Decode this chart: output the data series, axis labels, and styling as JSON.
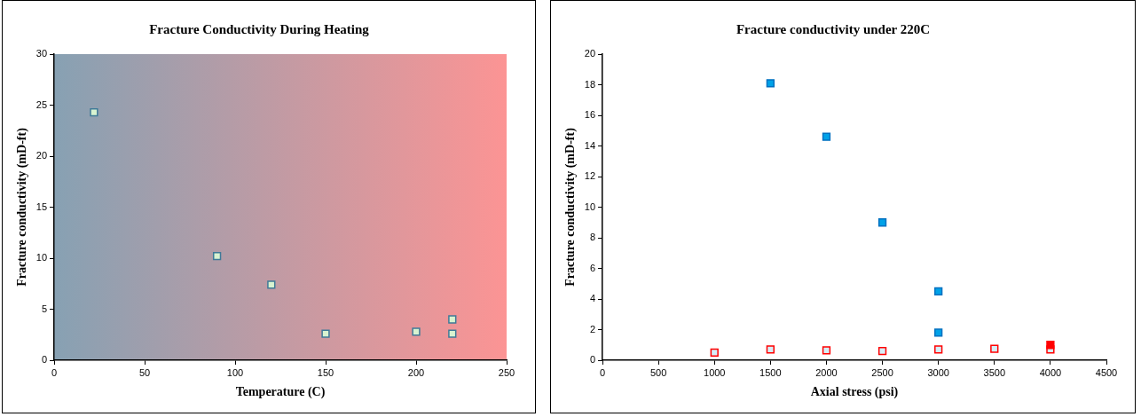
{
  "chart_data": [
    {
      "type": "scatter",
      "title": "Fracture Conductivity During Heating",
      "xlabel": "Temperature (C)",
      "ylabel": "Fracture conductivity (mD-ft)",
      "xlim": [
        0,
        250
      ],
      "xticks": [
        0,
        50,
        100,
        150,
        200,
        250
      ],
      "ylim": [
        0,
        30
      ],
      "yticks": [
        0,
        5,
        10,
        15,
        20,
        25,
        30
      ],
      "grid": false,
      "legend": false,
      "marker": "square",
      "series": [
        {
          "color": "#d8f3d0",
          "x": [
            22,
            90,
            120,
            150,
            200,
            220,
            220
          ],
          "values": [
            24.3,
            10.2,
            7.4,
            2.6,
            2.8,
            4.0,
            2.6
          ]
        }
      ]
    },
    {
      "type": "scatter",
      "title": "Fracture conductivity under 220C",
      "xlabel": "Axial stress (psi)",
      "ylabel": "Fracture conductivity (mD-ft)",
      "xlim": [
        0,
        4500
      ],
      "xticks": [
        0,
        500,
        1000,
        1500,
        2000,
        2500,
        3000,
        3500,
        4000,
        4500
      ],
      "ylim": [
        0,
        20
      ],
      "yticks": [
        0,
        2,
        4,
        6,
        8,
        10,
        12,
        14,
        16,
        18,
        20
      ],
      "grid": false,
      "legend": false,
      "marker": "square",
      "series": [
        {
          "color": "#00a2e8",
          "x": [
            1500,
            2000,
            2500,
            3000,
            3000
          ],
          "values": [
            18.1,
            14.6,
            9.0,
            4.5,
            1.8
          ]
        },
        {
          "color": "#ff0000",
          "x": [
            4000
          ],
          "values": [
            1.0
          ]
        },
        {
          "color": "#d6eef8",
          "x": [
            1000,
            1500,
            2000,
            2500,
            3000,
            3500,
            4000
          ],
          "values": [
            0.5,
            0.7,
            0.65,
            0.6,
            0.7,
            0.75,
            0.7
          ]
        }
      ]
    }
  ]
}
